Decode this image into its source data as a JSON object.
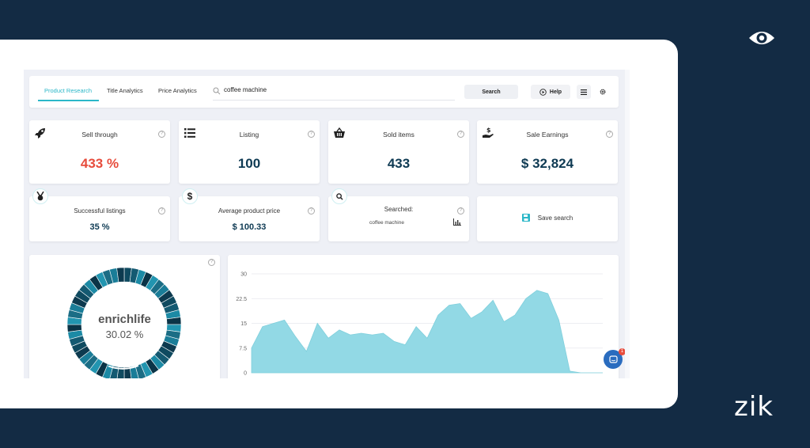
{
  "brand": {
    "logo_text": "zik",
    "eye_icon": "eye-icon"
  },
  "tabs": [
    {
      "label": "Product Research",
      "active": true
    },
    {
      "label": "Title Analytics",
      "active": false
    },
    {
      "label": "Price Analytics",
      "active": false
    }
  ],
  "search": {
    "value": "coffee machine",
    "button_label": "Search",
    "help_label": "Help"
  },
  "stats": {
    "sell_through": {
      "title": "Sell through",
      "value": "433 %",
      "icon": "rocket-icon"
    },
    "listing": {
      "title": "Listing",
      "value": "100",
      "icon": "list-icon"
    },
    "sold_items": {
      "title": "Sold items",
      "value": "433",
      "icon": "basket-icon"
    },
    "sale_earnings": {
      "title": "Sale Earnings",
      "value": "$ 32,824",
      "icon": "dollar-hand-icon"
    },
    "successful_listings": {
      "title": "Successful listings",
      "value": "35 %",
      "icon": "medal-icon"
    },
    "average_price": {
      "title": "Average product price",
      "value": "$ 100.33",
      "icon": "dollar-icon"
    },
    "searched": {
      "title": "Searched:",
      "value": "coffee machine",
      "icon": "search-icon"
    },
    "save_search": {
      "label": "Save search",
      "icon": "save-icon"
    }
  },
  "donut": {
    "name": "enrichlife",
    "percent": "30.02 %",
    "fraction": 0.3002,
    "color": "#1a5b73"
  },
  "chat": {
    "badge": "1"
  },
  "colors": {
    "accent": "#2bb7c8",
    "dark": "#0e3a53",
    "red": "#e74c3c",
    "area_fill": "#92d9e5",
    "background": "#132b44"
  },
  "chart_data": {
    "type": "area",
    "yticks": [
      "30",
      "22.5",
      "15",
      "7.5",
      "0"
    ],
    "ylim": [
      0,
      30
    ],
    "x": [
      1,
      2,
      3,
      4,
      5,
      6,
      7,
      8,
      9,
      10,
      11,
      12,
      13,
      14,
      15,
      16,
      17,
      18,
      19,
      20,
      21,
      22,
      23,
      24,
      25,
      26,
      27,
      28,
      29,
      30,
      31,
      32,
      33
    ],
    "values": [
      7.5,
      14,
      15,
      16,
      11,
      6.5,
      15,
      10.5,
      13,
      11.5,
      12,
      11.5,
      12,
      9.5,
      8.5,
      14,
      10.5,
      17.5,
      20.5,
      21,
      16.5,
      18.5,
      22,
      15.5,
      17.5,
      22.5,
      25,
      24,
      16,
      0.5,
      0,
      0,
      0
    ]
  }
}
